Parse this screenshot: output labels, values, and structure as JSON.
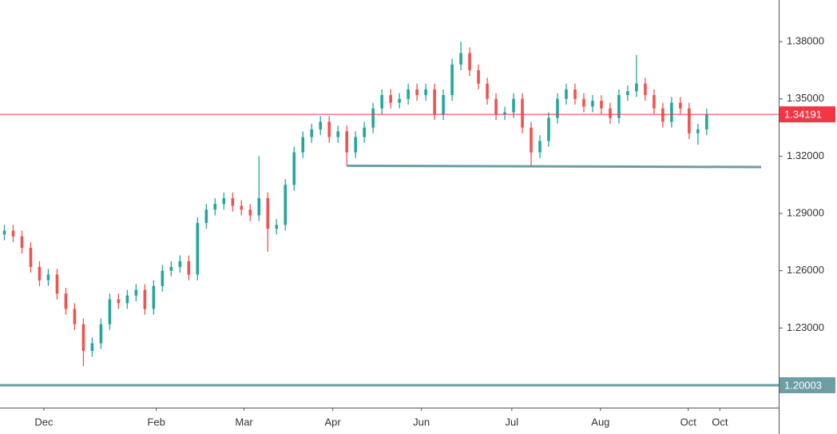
{
  "chart_data": {
    "type": "ohlc",
    "up_color": "#26a69a",
    "down_color": "#ef5350",
    "xlim": [
      -0.5,
      88.2
    ],
    "xticks": [
      {
        "value": 4.5,
        "label": "Dec"
      },
      {
        "value": 17.3,
        "label": "Feb"
      },
      {
        "value": 27.3,
        "label": "Mar"
      },
      {
        "value": 37.4,
        "label": "Apr"
      },
      {
        "value": 47.5,
        "label": "Jun"
      },
      {
        "value": 57.8,
        "label": "Jul"
      },
      {
        "value": 67.9,
        "label": "Aug"
      },
      {
        "value": 77.9,
        "label": "Oct"
      },
      {
        "value": 81.5,
        "label": "Oct"
      }
    ],
    "ylim": [
      1.1883,
      1.4018
    ],
    "yticks": [
      {
        "value": 1.38,
        "label": "1.38000"
      },
      {
        "value": 1.35,
        "label": "1.35000"
      },
      {
        "value": 1.32,
        "label": "1.32000"
      },
      {
        "value": 1.29,
        "label": "1.29000"
      },
      {
        "value": 1.26,
        "label": "1.26000"
      },
      {
        "value": 1.23,
        "label": "1.23000"
      }
    ],
    "open": [
      1.279,
      1.281,
      1.278,
      1.272,
      1.262,
      1.255,
      1.258,
      1.248,
      1.24,
      1.232,
      1.218,
      1.222,
      1.232,
      1.245,
      1.243,
      1.247,
      1.25,
      1.24,
      1.252,
      1.26,
      1.262,
      1.265,
      1.258,
      1.285,
      1.292,
      1.295,
      1.298,
      1.294,
      1.292,
      1.289,
      1.298,
      1.282,
      1.284,
      1.305,
      1.322,
      1.33,
      1.334,
      1.338,
      1.33,
      1.333,
      1.322,
      1.33,
      1.335,
      1.345,
      1.352,
      1.348,
      1.35,
      1.355,
      1.352,
      1.355,
      1.342,
      1.352,
      1.368,
      1.374,
      1.365,
      1.358,
      1.35,
      1.342,
      1.343,
      1.35,
      1.335,
      1.322,
      1.328,
      1.34,
      1.35,
      1.355,
      1.35,
      1.346,
      1.349,
      1.345,
      1.34,
      1.352,
      1.354,
      1.358,
      1.352,
      1.345,
      1.338,
      1.348,
      1.345,
      1.332,
      1.334
    ],
    "high": [
      1.284,
      1.284,
      1.281,
      1.275,
      1.265,
      1.261,
      1.261,
      1.251,
      1.243,
      1.235,
      1.225,
      1.235,
      1.248,
      1.248,
      1.25,
      1.253,
      1.253,
      1.255,
      1.263,
      1.265,
      1.268,
      1.268,
      1.288,
      1.295,
      1.298,
      1.301,
      1.301,
      1.297,
      1.295,
      1.32,
      1.301,
      1.287,
      1.308,
      1.325,
      1.333,
      1.337,
      1.341,
      1.341,
      1.336,
      1.336,
      1.333,
      1.338,
      1.348,
      1.355,
      1.355,
      1.353,
      1.358,
      1.358,
      1.358,
      1.358,
      1.355,
      1.371,
      1.38,
      1.377,
      1.368,
      1.361,
      1.353,
      1.346,
      1.353,
      1.353,
      1.338,
      1.331,
      1.343,
      1.353,
      1.358,
      1.358,
      1.353,
      1.352,
      1.352,
      1.348,
      1.355,
      1.357,
      1.373,
      1.361,
      1.355,
      1.348,
      1.351,
      1.351,
      1.348,
      1.337,
      1.345
    ],
    "low": [
      1.276,
      1.275,
      1.269,
      1.259,
      1.252,
      1.252,
      1.245,
      1.237,
      1.229,
      1.21,
      1.215,
      1.219,
      1.229,
      1.24,
      1.24,
      1.244,
      1.237,
      1.237,
      1.249,
      1.257,
      1.259,
      1.255,
      1.255,
      1.282,
      1.289,
      1.292,
      1.291,
      1.289,
      1.286,
      1.286,
      1.27,
      1.279,
      1.281,
      1.302,
      1.319,
      1.327,
      1.331,
      1.327,
      1.327,
      1.315,
      1.319,
      1.327,
      1.332,
      1.342,
      1.345,
      1.345,
      1.347,
      1.349,
      1.349,
      1.339,
      1.339,
      1.349,
      1.365,
      1.362,
      1.355,
      1.347,
      1.339,
      1.339,
      1.34,
      1.332,
      1.315,
      1.319,
      1.325,
      1.337,
      1.347,
      1.347,
      1.343,
      1.343,
      1.342,
      1.337,
      1.337,
      1.349,
      1.351,
      1.349,
      1.342,
      1.335,
      1.335,
      1.342,
      1.329,
      1.326,
      1.331
    ],
    "close": [
      1.281,
      1.278,
      1.272,
      1.262,
      1.255,
      1.258,
      1.248,
      1.24,
      1.232,
      1.218,
      1.222,
      1.232,
      1.245,
      1.243,
      1.247,
      1.25,
      1.24,
      1.252,
      1.26,
      1.262,
      1.265,
      1.258,
      1.285,
      1.292,
      1.295,
      1.298,
      1.294,
      1.292,
      1.289,
      1.298,
      1.282,
      1.284,
      1.305,
      1.322,
      1.33,
      1.334,
      1.338,
      1.33,
      1.333,
      1.322,
      1.33,
      1.335,
      1.345,
      1.352,
      1.348,
      1.35,
      1.355,
      1.352,
      1.355,
      1.342,
      1.352,
      1.368,
      1.374,
      1.365,
      1.358,
      1.35,
      1.342,
      1.343,
      1.35,
      1.335,
      1.322,
      1.328,
      1.34,
      1.35,
      1.355,
      1.35,
      1.346,
      1.349,
      1.345,
      1.34,
      1.352,
      1.354,
      1.358,
      1.352,
      1.345,
      1.338,
      1.348,
      1.345,
      1.332,
      1.334,
      1.342
    ],
    "price_lines": [
      {
        "value": 1.34191,
        "color": "#f23645"
      },
      {
        "value": 1.20003,
        "color": "#6d9ea3"
      }
    ],
    "trend_line": {
      "x": [
        39,
        86.2
      ],
      "values": [
        1.315,
        1.3143
      ],
      "color": "#6d9ea3"
    }
  }
}
